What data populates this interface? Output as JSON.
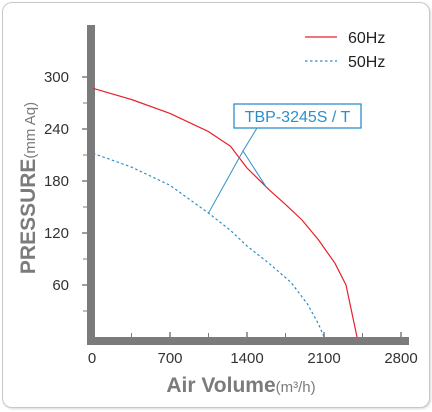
{
  "chart_data": {
    "type": "line",
    "ylabel": "PRESSURE",
    "ylabel_unit": "(mm Aq)",
    "xlabel": "Air Volume",
    "xlabel_unit": "(m³/h)",
    "xlim": [
      0,
      2800
    ],
    "ylim": [
      0,
      360
    ],
    "x_ticks": [
      "0",
      "700",
      "1400",
      "2100",
      "2800"
    ],
    "x_tick_values": [
      0,
      700,
      1400,
      2100,
      2800
    ],
    "y_ticks": [
      "60",
      "120",
      "180",
      "240",
      "300"
    ],
    "y_tick_values": [
      60,
      120,
      180,
      240,
      300
    ],
    "legend_position": "top-right",
    "annotation": "TBP-3245S / T",
    "series": [
      {
        "name": "60Hz",
        "color": "#e8202a",
        "style": "solid",
        "x": [
          0,
          350,
          700,
          1050,
          1250,
          1400,
          1600,
          1750,
          1900,
          2050,
          2200,
          2300,
          2400
        ],
        "y": [
          287,
          274,
          258,
          237,
          220,
          195,
          170,
          153,
          135,
          112,
          85,
          60,
          0
        ]
      },
      {
        "name": "50Hz",
        "color": "#2e8ec8",
        "style": "dashed",
        "x": [
          0,
          350,
          700,
          1050,
          1250,
          1400,
          1600,
          1800,
          1950,
          2050,
          2100
        ],
        "y": [
          212,
          196,
          175,
          143,
          123,
          105,
          85,
          63,
          38,
          15,
          0
        ]
      }
    ]
  }
}
